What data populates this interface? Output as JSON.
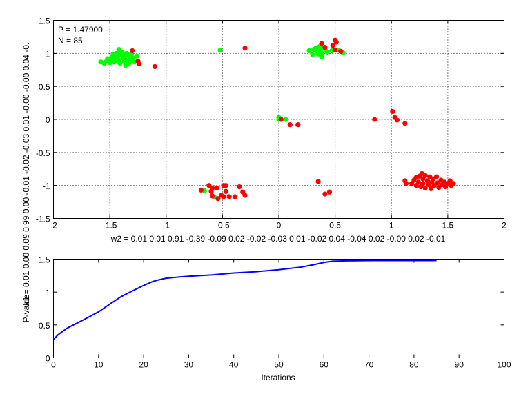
{
  "chart_data": [
    {
      "type": "scatter",
      "annotations": [
        "P = 1.47900",
        "N = 85"
      ],
      "xlabel": "w2 = 0.01  0.01  0.91  -0.39  -0.09  0.02  -0.02  -0.03  0.01  -0.02  0.04  -0.04  0.02  -0.00  0.02  -0.01",
      "ylabel": "w1 = 0.01  0.00  0.09  0.99  0.00  -0.01  -0.02  -0.03  0.01  -0.00  -0.00  0.04  -0.",
      "xlim": [
        -2,
        2
      ],
      "ylim": [
        -1.5,
        1.5
      ],
      "xticks": [
        "-2",
        "-1.5",
        "-1",
        "-0.5",
        "0",
        "0.5",
        "1",
        "1.5",
        "2"
      ],
      "yticks": [
        "-1.5",
        "-1",
        "-0.5",
        "0",
        "0.5",
        "1",
        "1.5"
      ],
      "grid": true,
      "colors": {
        "green": "#00ff00",
        "red": "#ff0000"
      },
      "series": [
        {
          "color": "green",
          "points": [
            [
              -1.58,
              0.87
            ],
            [
              -1.55,
              0.85
            ],
            [
              -1.53,
              0.88
            ],
            [
              -1.52,
              0.92
            ],
            [
              -1.5,
              0.86
            ],
            [
              -1.49,
              0.9
            ],
            [
              -1.48,
              0.95
            ],
            [
              -1.47,
              0.99
            ],
            [
              -1.46,
              0.87
            ],
            [
              -1.45,
              0.93
            ],
            [
              -1.44,
              1.0
            ],
            [
              -1.43,
              0.96
            ],
            [
              -1.42,
              0.9
            ],
            [
              -1.41,
              0.85
            ],
            [
              -1.4,
              0.98
            ],
            [
              -1.39,
              1.02
            ],
            [
              -1.38,
              0.93
            ],
            [
              -1.37,
              0.88
            ],
            [
              -1.36,
              0.97
            ],
            [
              -1.35,
              1.0
            ],
            [
              -1.34,
              0.9
            ],
            [
              -1.33,
              0.85
            ],
            [
              -1.32,
              0.95
            ],
            [
              -1.31,
              0.99
            ],
            [
              -1.3,
              0.88
            ],
            [
              -1.29,
              0.93
            ],
            [
              -1.28,
              0.87
            ],
            [
              -1.42,
              1.06
            ],
            [
              -1.36,
              0.82
            ],
            [
              -1.26,
              0.96
            ],
            [
              -1.25,
              0.88
            ],
            [
              -0.52,
              1.05
            ],
            [
              0.27,
              1.04
            ],
            [
              0.3,
              0.98
            ],
            [
              0.31,
              1.06
            ],
            [
              0.33,
              1.08
            ],
            [
              0.34,
              1.03
            ],
            [
              0.35,
              0.99
            ],
            [
              0.36,
              1.1
            ],
            [
              0.37,
              1.05
            ],
            [
              0.38,
              1.0
            ],
            [
              0.38,
              0.95
            ],
            [
              0.4,
              1.08
            ],
            [
              0.42,
              1.04
            ],
            [
              0.43,
              1.02
            ],
            [
              0.47,
              1.04
            ],
            [
              0.53,
              1.05
            ],
            [
              0.57,
              1.01
            ],
            [
              0.0,
              0.03
            ],
            [
              0.0,
              0.0
            ],
            [
              0.06,
              0.0
            ],
            [
              -0.66,
              -1.08
            ],
            [
              -0.57,
              -1.18
            ]
          ]
        },
        {
          "color": "red",
          "points": [
            [
              -1.3,
              1.04
            ],
            [
              -1.25,
              0.88
            ],
            [
              -1.24,
              0.84
            ],
            [
              -1.1,
              0.8
            ],
            [
              -0.3,
              1.08
            ],
            [
              0.38,
              1.15
            ],
            [
              0.41,
              1.09
            ],
            [
              0.5,
              1.2
            ],
            [
              0.51,
              1.17
            ],
            [
              0.48,
              1.12
            ],
            [
              0.5,
              1.05
            ],
            [
              0.55,
              1.03
            ],
            [
              0.02,
              0.0
            ],
            [
              0.1,
              -0.08
            ],
            [
              0.17,
              -0.08
            ],
            [
              0.85,
              0.0
            ],
            [
              1.01,
              0.12
            ],
            [
              1.03,
              0.03
            ],
            [
              1.05,
              -0.01
            ],
            [
              1.12,
              -0.06
            ],
            [
              -0.69,
              -1.07
            ],
            [
              -0.62,
              -1.0
            ],
            [
              -0.59,
              -1.04
            ],
            [
              -0.55,
              -1.04
            ],
            [
              -0.6,
              -1.09
            ],
            [
              -0.59,
              -1.16
            ],
            [
              -0.54,
              -1.2
            ],
            [
              -0.51,
              -1.15
            ],
            [
              -0.49,
              -1.0
            ],
            [
              -0.47,
              -1.0
            ],
            [
              -0.47,
              -1.09
            ],
            [
              -0.49,
              -1.17
            ],
            [
              -0.44,
              -1.17
            ],
            [
              -0.39,
              -1.17
            ],
            [
              -0.35,
              -1.02
            ],
            [
              -0.32,
              -1.1
            ],
            [
              -0.3,
              -1.15
            ],
            [
              0.35,
              -0.94
            ],
            [
              0.41,
              -1.13
            ],
            [
              0.45,
              -1.1
            ],
            [
              1.12,
              -0.93
            ],
            [
              1.13,
              -0.97
            ],
            [
              1.18,
              -0.97
            ],
            [
              1.2,
              -0.92
            ],
            [
              1.22,
              -0.88
            ],
            [
              1.22,
              -1.0
            ],
            [
              1.24,
              -0.95
            ],
            [
              1.25,
              -0.86
            ],
            [
              1.26,
              -1.02
            ],
            [
              1.28,
              -0.9
            ],
            [
              1.28,
              -0.97
            ],
            [
              1.3,
              -0.85
            ],
            [
              1.3,
              -1.04
            ],
            [
              1.32,
              -0.93
            ],
            [
              1.33,
              -0.99
            ],
            [
              1.34,
              -0.87
            ],
            [
              1.35,
              -1.05
            ],
            [
              1.36,
              -0.95
            ],
            [
              1.37,
              -0.9
            ],
            [
              1.38,
              -1.0
            ],
            [
              1.4,
              -0.87
            ],
            [
              1.41,
              -0.96
            ],
            [
              1.42,
              -1.03
            ],
            [
              1.44,
              -0.92
            ],
            [
              1.45,
              -0.99
            ],
            [
              1.47,
              -0.95
            ],
            [
              1.48,
              -1.02
            ],
            [
              1.5,
              -0.97
            ],
            [
              1.52,
              -0.93
            ],
            [
              1.53,
              -1.0
            ],
            [
              1.55,
              -0.97
            ],
            [
              1.27,
              -0.82
            ]
          ]
        }
      ]
    },
    {
      "type": "line",
      "xlabel": "Iterations",
      "ylabel": "P-value",
      "xlim": [
        0,
        100
      ],
      "ylim": [
        0,
        1.5
      ],
      "xticks": [
        "0",
        "10",
        "20",
        "30",
        "40",
        "50",
        "60",
        "70",
        "80",
        "90",
        "100"
      ],
      "yticks": [
        "0",
        "0.5",
        "1",
        "1.5"
      ],
      "grid": false,
      "color": "#0000ff",
      "x": [
        0,
        1,
        2,
        3,
        5,
        7,
        10,
        13,
        15,
        17,
        20,
        22,
        23,
        25,
        28,
        30,
        35,
        40,
        45,
        50,
        55,
        58,
        60,
        62,
        65,
        70,
        75,
        80,
        85
      ],
      "y": [
        0.28,
        0.35,
        0.4,
        0.45,
        0.52,
        0.59,
        0.7,
        0.84,
        0.93,
        1.0,
        1.1,
        1.16,
        1.18,
        1.21,
        1.23,
        1.24,
        1.26,
        1.29,
        1.31,
        1.34,
        1.38,
        1.42,
        1.45,
        1.47,
        1.475,
        1.479,
        1.479,
        1.479,
        1.479
      ]
    }
  ]
}
